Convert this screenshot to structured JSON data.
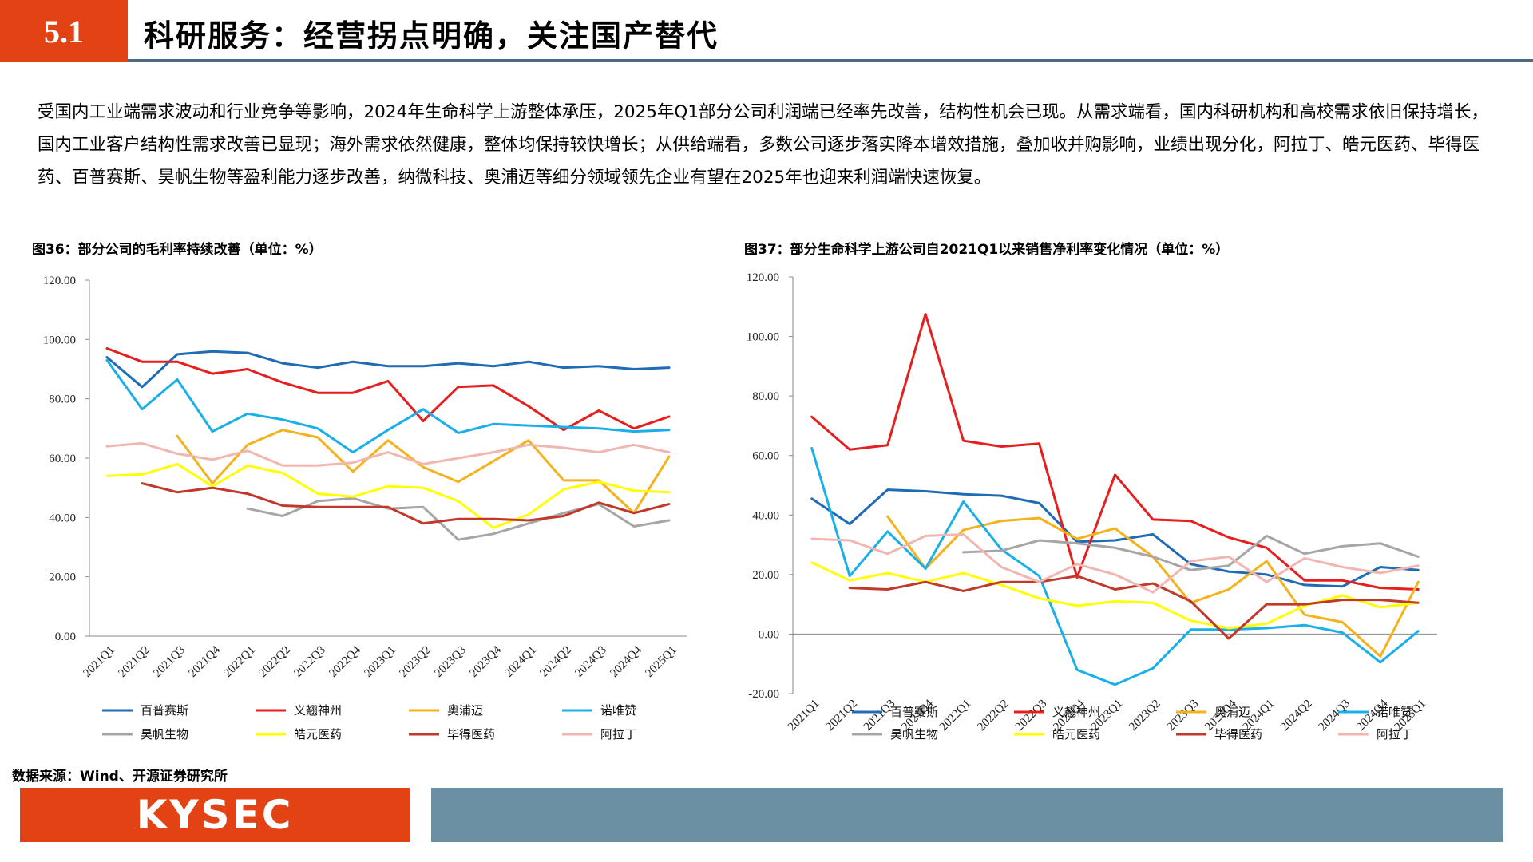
{
  "header": {
    "section_number": "5.1",
    "title": "科研服务：经营拐点明确，关注国产替代",
    "colors": {
      "accent": "#e34214",
      "rule": "#4d6a80"
    }
  },
  "intro_text": "受国内工业端需求波动和行业竞争等影响，2024年生命科学上游整体承压，2025年Q1部分公司利润端已经率先改善，结构性机会已现。从需求端看，国内科研机构和高校需求依旧保持增长，国内工业客户结构性需求改善已显现；海外需求依然健康，整体均保持较快增长；从供给端看，多数公司逐步落实降本增效措施，叠加收并购影响，业绩出现分化，阿拉丁、皓元医药、毕得医药、百普赛斯、昊帆生物等盈利能力逐步改善，纳微科技、奥浦迈等细分领域领先企业有望在2025年也迎来利润端快速恢复。",
  "source": "数据来源：Wind、开源证券研究所",
  "footer": {
    "logo_text": "KYSEC",
    "colors": {
      "logo_bg": "#e34214",
      "bar": "#6b8fa3"
    }
  },
  "chart_data": [
    {
      "type": "line",
      "title": "图36：部分公司的毛利率持续改善（单位：%）",
      "categories": [
        "2021Q1",
        "2021Q2",
        "2021Q3",
        "2021Q4",
        "2022Q1",
        "2022Q2",
        "2022Q3",
        "2022Q4",
        "2023Q1",
        "2023Q2",
        "2023Q3",
        "2023Q4",
        "2024Q1",
        "2024Q2",
        "2024Q3",
        "2024Q4",
        "2025Q1"
      ],
      "ylim": [
        0,
        120
      ],
      "yticks": [
        "0.00",
        "20.00",
        "40.00",
        "60.00",
        "80.00",
        "100.00",
        "120.00"
      ],
      "legend_position": "bottom",
      "series": [
        {
          "name": "百普赛斯",
          "color": "#1f6cb5",
          "values": [
            94,
            84,
            95,
            96,
            95.5,
            92,
            90.5,
            92.5,
            91,
            91,
            92,
            91,
            92.5,
            90.5,
            91,
            90,
            90.5
          ]
        },
        {
          "name": "义翘神州",
          "color": "#e61e1e",
          "values": [
            97,
            92.5,
            92.5,
            88.5,
            90,
            85.5,
            82,
            82,
            86,
            72.5,
            84,
            84.5,
            77.5,
            69.5,
            76,
            70,
            74
          ]
        },
        {
          "name": "奥浦迈",
          "color": "#f4b21b",
          "values": [
            null,
            null,
            67.5,
            51.5,
            64.5,
            69.5,
            67,
            55.5,
            66,
            57,
            52,
            59,
            66,
            52.5,
            52.5,
            41.5,
            60.5
          ]
        },
        {
          "name": "诺唯赞",
          "color": "#19b0ea",
          "values": [
            93,
            76.5,
            86.5,
            69,
            75,
            73,
            70,
            62,
            69.5,
            76.5,
            68.5,
            71.5,
            71,
            70.5,
            70,
            69,
            69.5
          ]
        },
        {
          "name": "昊帆生物",
          "color": "#a6a6a6",
          "values": [
            null,
            null,
            null,
            null,
            43,
            40.5,
            45.5,
            46.5,
            43,
            43.5,
            32.5,
            34.5,
            38,
            41.5,
            44.5,
            37,
            39
          ]
        },
        {
          "name": "皓元医药",
          "color": "#ffff00",
          "values": [
            54,
            54.5,
            58,
            50.5,
            57.5,
            55,
            48,
            47,
            50.5,
            50,
            45.5,
            36.5,
            41,
            49.5,
            52,
            49,
            48.5
          ]
        },
        {
          "name": "毕得医药",
          "color": "#c0392b",
          "values": [
            null,
            51.5,
            48.5,
            50,
            48,
            44,
            43.5,
            43.5,
            43.5,
            38,
            39.5,
            39.5,
            39,
            40.5,
            45,
            41.5,
            44.5
          ]
        },
        {
          "name": "阿拉丁",
          "color": "#f2b6b0",
          "values": [
            64,
            65,
            61.5,
            59.5,
            62.5,
            57.5,
            57.5,
            58.5,
            62,
            58,
            60,
            62,
            64.5,
            63.5,
            62,
            64.5,
            62
          ]
        }
      ]
    },
    {
      "type": "line",
      "title": "图37：部分生命科学上游公司自2021Q1以来销售净利率变化情况（单位：%）",
      "categories": [
        "2021Q1",
        "2021Q2",
        "2021Q3",
        "2021Q4",
        "2022Q1",
        "2022Q2",
        "2022Q3",
        "2022Q4",
        "2023Q1",
        "2023Q2",
        "2023Q3",
        "2023Q4",
        "2024Q1",
        "2024Q2",
        "2024Q3",
        "2024Q4",
        "2025Q1"
      ],
      "ylim": [
        -20,
        120
      ],
      "yticks": [
        "-20.00",
        "0.00",
        "20.00",
        "40.00",
        "60.00",
        "80.00",
        "100.00",
        "120.00"
      ],
      "legend_position": "bottom",
      "series": [
        {
          "name": "百普赛斯",
          "color": "#1f6cb5",
          "values": [
            45.5,
            37,
            48.5,
            48,
            47,
            46.5,
            44,
            31,
            31.5,
            33.5,
            23.5,
            21,
            20,
            16.5,
            16,
            22.5,
            21.5
          ]
        },
        {
          "name": "义翘神州",
          "color": "#e61e1e",
          "values": [
            73,
            62,
            63.5,
            107.5,
            65,
            63,
            64,
            19,
            53.5,
            38.5,
            38,
            32.5,
            29,
            18,
            18,
            15.5,
            15
          ]
        },
        {
          "name": "奥浦迈",
          "color": "#f4b21b",
          "values": [
            null,
            null,
            39.5,
            22,
            35,
            38,
            39,
            32,
            35.5,
            26,
            10.5,
            15,
            24.5,
            6.5,
            4,
            -7.5,
            17.5
          ]
        },
        {
          "name": "诺唯赞",
          "color": "#19b0ea",
          "values": [
            62.5,
            19.5,
            34.5,
            22,
            44.5,
            28.5,
            19.5,
            -12,
            -17,
            -11.5,
            1.5,
            1.5,
            2,
            3,
            0.5,
            -9.5,
            1
          ]
        },
        {
          "name": "昊帆生物",
          "color": "#a6a6a6",
          "values": [
            null,
            null,
            null,
            null,
            27.5,
            28,
            31.5,
            30.5,
            29,
            26,
            21.5,
            23,
            33,
            27,
            29.5,
            30.5,
            26
          ]
        },
        {
          "name": "皓元医药",
          "color": "#ffff00",
          "values": [
            24,
            18,
            20.5,
            17.5,
            20.5,
            16.5,
            12,
            9.5,
            11,
            10.5,
            4.5,
            2,
            3.5,
            9.5,
            13,
            9,
            10.5
          ]
        },
        {
          "name": "毕得医药",
          "color": "#c0392b",
          "values": [
            null,
            15.5,
            15,
            17.5,
            14.5,
            17.5,
            17.5,
            19.5,
            15,
            17,
            11,
            -1.5,
            10,
            10,
            11.5,
            11.5,
            10.5
          ]
        },
        {
          "name": "阿拉丁",
          "color": "#f2b6b0",
          "values": [
            32,
            31.5,
            27,
            33,
            33.5,
            22.5,
            17.5,
            23.5,
            20,
            14,
            24.5,
            26,
            17.5,
            25.5,
            22.5,
            20.5,
            23
          ]
        }
      ]
    }
  ]
}
